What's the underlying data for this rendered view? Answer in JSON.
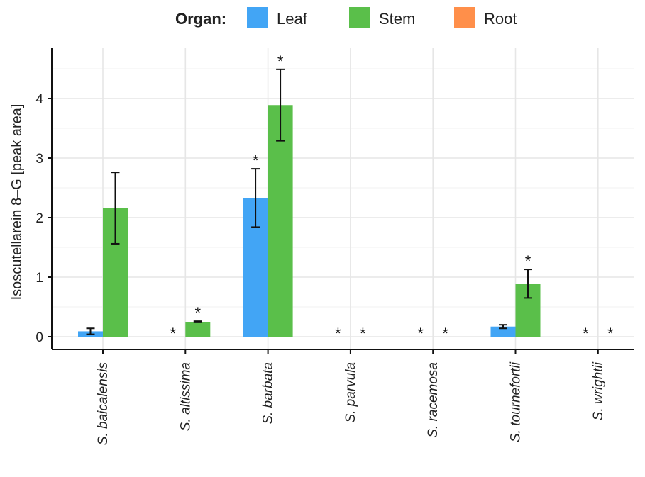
{
  "chart_data": {
    "type": "bar",
    "title": "",
    "xlabel": "",
    "ylabel": "Isoscutellarein 8–G [peak area]",
    "ylim": [
      -0.1,
      4.8
    ],
    "yticks": [
      0,
      1,
      2,
      3,
      4
    ],
    "grid": true,
    "legend": {
      "title": "Organ:",
      "position": "top",
      "entries": [
        "Leaf",
        "Stem",
        "Root"
      ]
    },
    "colors": {
      "Leaf": "#42a5f5",
      "Stem": "#5abf4a",
      "Root": "#ff8f4a"
    },
    "categories": [
      "S. baicalensis",
      "S. altissima",
      "S. barbata",
      "S. parvula",
      "S. racemosa",
      "S. tournefortii",
      "S. wrightii"
    ],
    "series": [
      {
        "name": "Leaf",
        "values": [
          0.09,
          0,
          2.33,
          0,
          0,
          0.17,
          0
        ],
        "error": [
          0.05,
          0,
          0.49,
          0,
          0,
          0.03,
          0
        ],
        "significant": [
          false,
          true,
          true,
          true,
          true,
          false,
          true
        ]
      },
      {
        "name": "Stem",
        "values": [
          2.16,
          0.25,
          3.89,
          0,
          0,
          0.89,
          0
        ],
        "error": [
          0.6,
          0.01,
          0.6,
          0,
          0,
          0.24,
          0
        ],
        "significant": [
          false,
          true,
          true,
          true,
          true,
          true,
          true
        ]
      }
    ],
    "annotation_symbol": "*"
  }
}
